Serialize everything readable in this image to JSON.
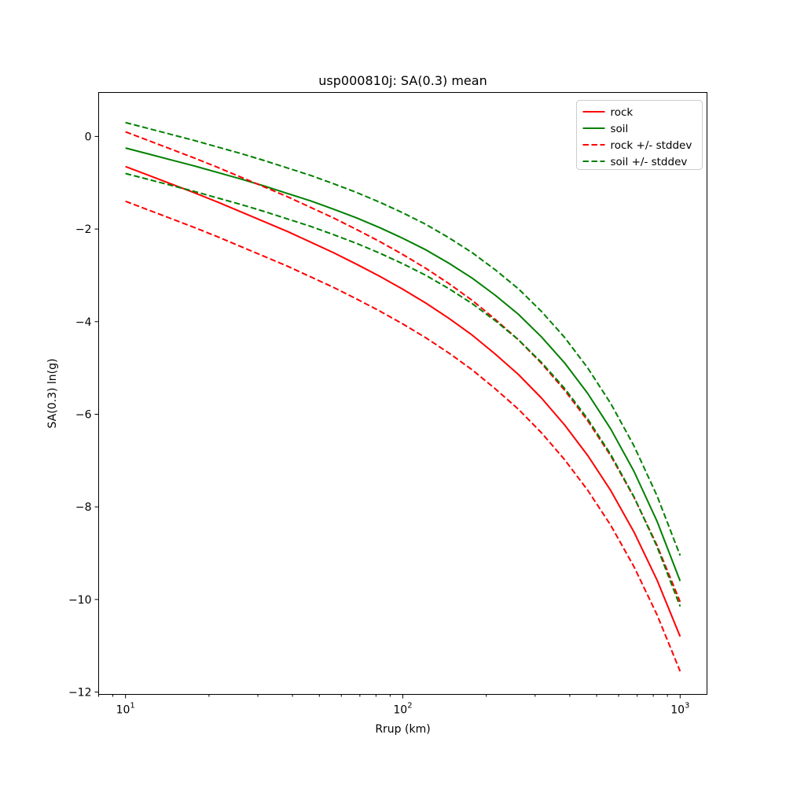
{
  "chart_data": {
    "type": "line",
    "title": "usp000810j: SA(0.3) mean",
    "xlabel": "Rrup (km)",
    "ylabel": "SA(0.3) ln(g)",
    "x_scale": "log",
    "y_scale": "linear",
    "grid": false,
    "legend_position": "upper right",
    "xlim": [
      8,
      1250
    ],
    "ylim": [
      -12.05,
      0.95
    ],
    "x": [
      10,
      12.12,
      14.68,
      17.78,
      21.54,
      26.1,
      31.62,
      38.31,
      46.42,
      56.23,
      68.13,
      82.54,
      100,
      121.15,
      146.78,
      177.83,
      215.44,
      261.02,
      316.23,
      383.12,
      464.16,
      562.34,
      681.29,
      825.4,
      1000
    ],
    "series": [
      {
        "name": "rock",
        "color": "#ff0000",
        "style": "solid",
        "values": [
          -0.65,
          -0.84,
          -1.03,
          -1.22,
          -1.42,
          -1.63,
          -1.84,
          -2.05,
          -2.28,
          -2.51,
          -2.76,
          -3.02,
          -3.3,
          -3.6,
          -3.93,
          -4.29,
          -4.7,
          -5.14,
          -5.65,
          -6.23,
          -6.89,
          -7.65,
          -8.54,
          -9.58,
          -10.8
        ]
      },
      {
        "name": "soil",
        "color": "#008000",
        "style": "solid",
        "values": [
          -0.25,
          -0.38,
          -0.51,
          -0.64,
          -0.78,
          -0.92,
          -1.07,
          -1.23,
          -1.39,
          -1.57,
          -1.76,
          -1.97,
          -2.2,
          -2.45,
          -2.74,
          -3.06,
          -3.43,
          -3.84,
          -4.33,
          -4.89,
          -5.55,
          -6.32,
          -7.23,
          -8.31,
          -9.6
        ]
      },
      {
        "name": "rock +/- stddev",
        "color": "#ff0000",
        "style": "dashed",
        "stddev": 0.75,
        "values_plus": [
          0.1,
          -0.09,
          -0.28,
          -0.47,
          -0.67,
          -0.88,
          -1.09,
          -1.3,
          -1.53,
          -1.76,
          -2.01,
          -2.27,
          -2.55,
          -2.85,
          -3.18,
          -3.54,
          -3.95,
          -4.39,
          -4.9,
          -5.48,
          -6.14,
          -6.9,
          -7.79,
          -8.83,
          -10.05
        ],
        "values_minus": [
          -1.4,
          -1.59,
          -1.78,
          -1.97,
          -2.17,
          -2.38,
          -2.59,
          -2.8,
          -3.03,
          -3.26,
          -3.51,
          -3.77,
          -4.05,
          -4.35,
          -4.68,
          -5.04,
          -5.45,
          -5.89,
          -6.4,
          -6.98,
          -7.64,
          -8.4,
          -9.29,
          -10.33,
          -11.55
        ]
      },
      {
        "name": "soil +/- stddev",
        "color": "#008000",
        "style": "dashed",
        "stddev": 0.55,
        "values_plus": [
          0.3,
          0.17,
          0.04,
          -0.09,
          -0.23,
          -0.37,
          -0.52,
          -0.68,
          -0.84,
          -1.02,
          -1.21,
          -1.42,
          -1.65,
          -1.9,
          -2.19,
          -2.51,
          -2.88,
          -3.29,
          -3.78,
          -4.34,
          -5.0,
          -5.77,
          -6.68,
          -7.76,
          -9.05
        ],
        "values_minus": [
          -0.8,
          -0.93,
          -1.06,
          -1.19,
          -1.33,
          -1.47,
          -1.62,
          -1.78,
          -1.94,
          -2.12,
          -2.31,
          -2.52,
          -2.75,
          -3.0,
          -3.29,
          -3.61,
          -3.98,
          -4.39,
          -4.88,
          -5.44,
          -6.1,
          -6.87,
          -7.78,
          -8.86,
          -10.15
        ]
      }
    ],
    "x_ticks": [
      {
        "value": 10,
        "base": "10",
        "exponent": "1"
      },
      {
        "value": 100,
        "base": "10",
        "exponent": "2"
      },
      {
        "value": 1000,
        "base": "10",
        "exponent": "3"
      }
    ],
    "x_minor_ticks": [
      8,
      9,
      20,
      30,
      40,
      50,
      60,
      70,
      80,
      90,
      200,
      300,
      400,
      500,
      600,
      700,
      800,
      900
    ],
    "y_ticks": [
      {
        "value": 0,
        "label": "0"
      },
      {
        "value": -2,
        "label": "−2"
      },
      {
        "value": -4,
        "label": "−4"
      },
      {
        "value": -6,
        "label": "−6"
      },
      {
        "value": -8,
        "label": "−8"
      },
      {
        "value": -10,
        "label": "−10"
      },
      {
        "value": -12,
        "label": "−12"
      }
    ]
  }
}
